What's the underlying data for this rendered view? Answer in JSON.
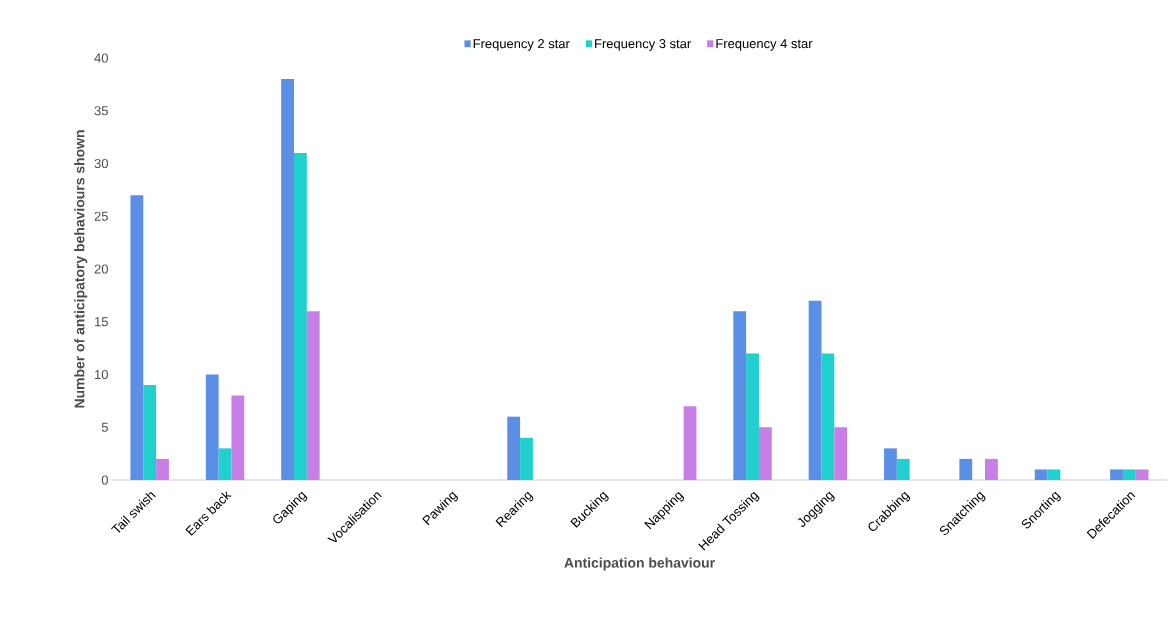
{
  "chart_data": {
    "type": "bar",
    "xlabel": "Anticipation behaviour",
    "ylabel": "Number of  anticipatory  behaviours shown",
    "categories": [
      "Tail swish",
      "Ears back",
      "Gaping",
      "Vocalisation",
      "Pawing",
      "Rearing",
      "Bucking",
      "Napping",
      "Head Tossing",
      "Jogging",
      "Crabbing",
      "Snatching",
      "Snorting",
      "Defecation"
    ],
    "series": [
      {
        "name": "Frequency  2 star",
        "color": "#5b8fe6",
        "values": [
          27,
          10,
          38,
          0,
          0,
          6,
          0,
          0,
          16,
          17,
          3,
          2,
          1,
          1
        ]
      },
      {
        "name": "Frequency  3 star",
        "color": "#22cfcf",
        "values": [
          9,
          3,
          31,
          0,
          0,
          4,
          0,
          0,
          12,
          12,
          2,
          0,
          1,
          1
        ]
      },
      {
        "name": "Frequency  4 star",
        "color": "#c77fe6",
        "values": [
          2,
          8,
          16,
          0,
          0,
          0,
          0,
          7,
          5,
          5,
          0,
          2,
          0,
          1
        ]
      }
    ],
    "ylim": [
      0,
      40
    ],
    "yticks": [
      0,
      5,
      10,
      15,
      20,
      25,
      30,
      35,
      40
    ],
    "legend": "top",
    "grid": false
  }
}
